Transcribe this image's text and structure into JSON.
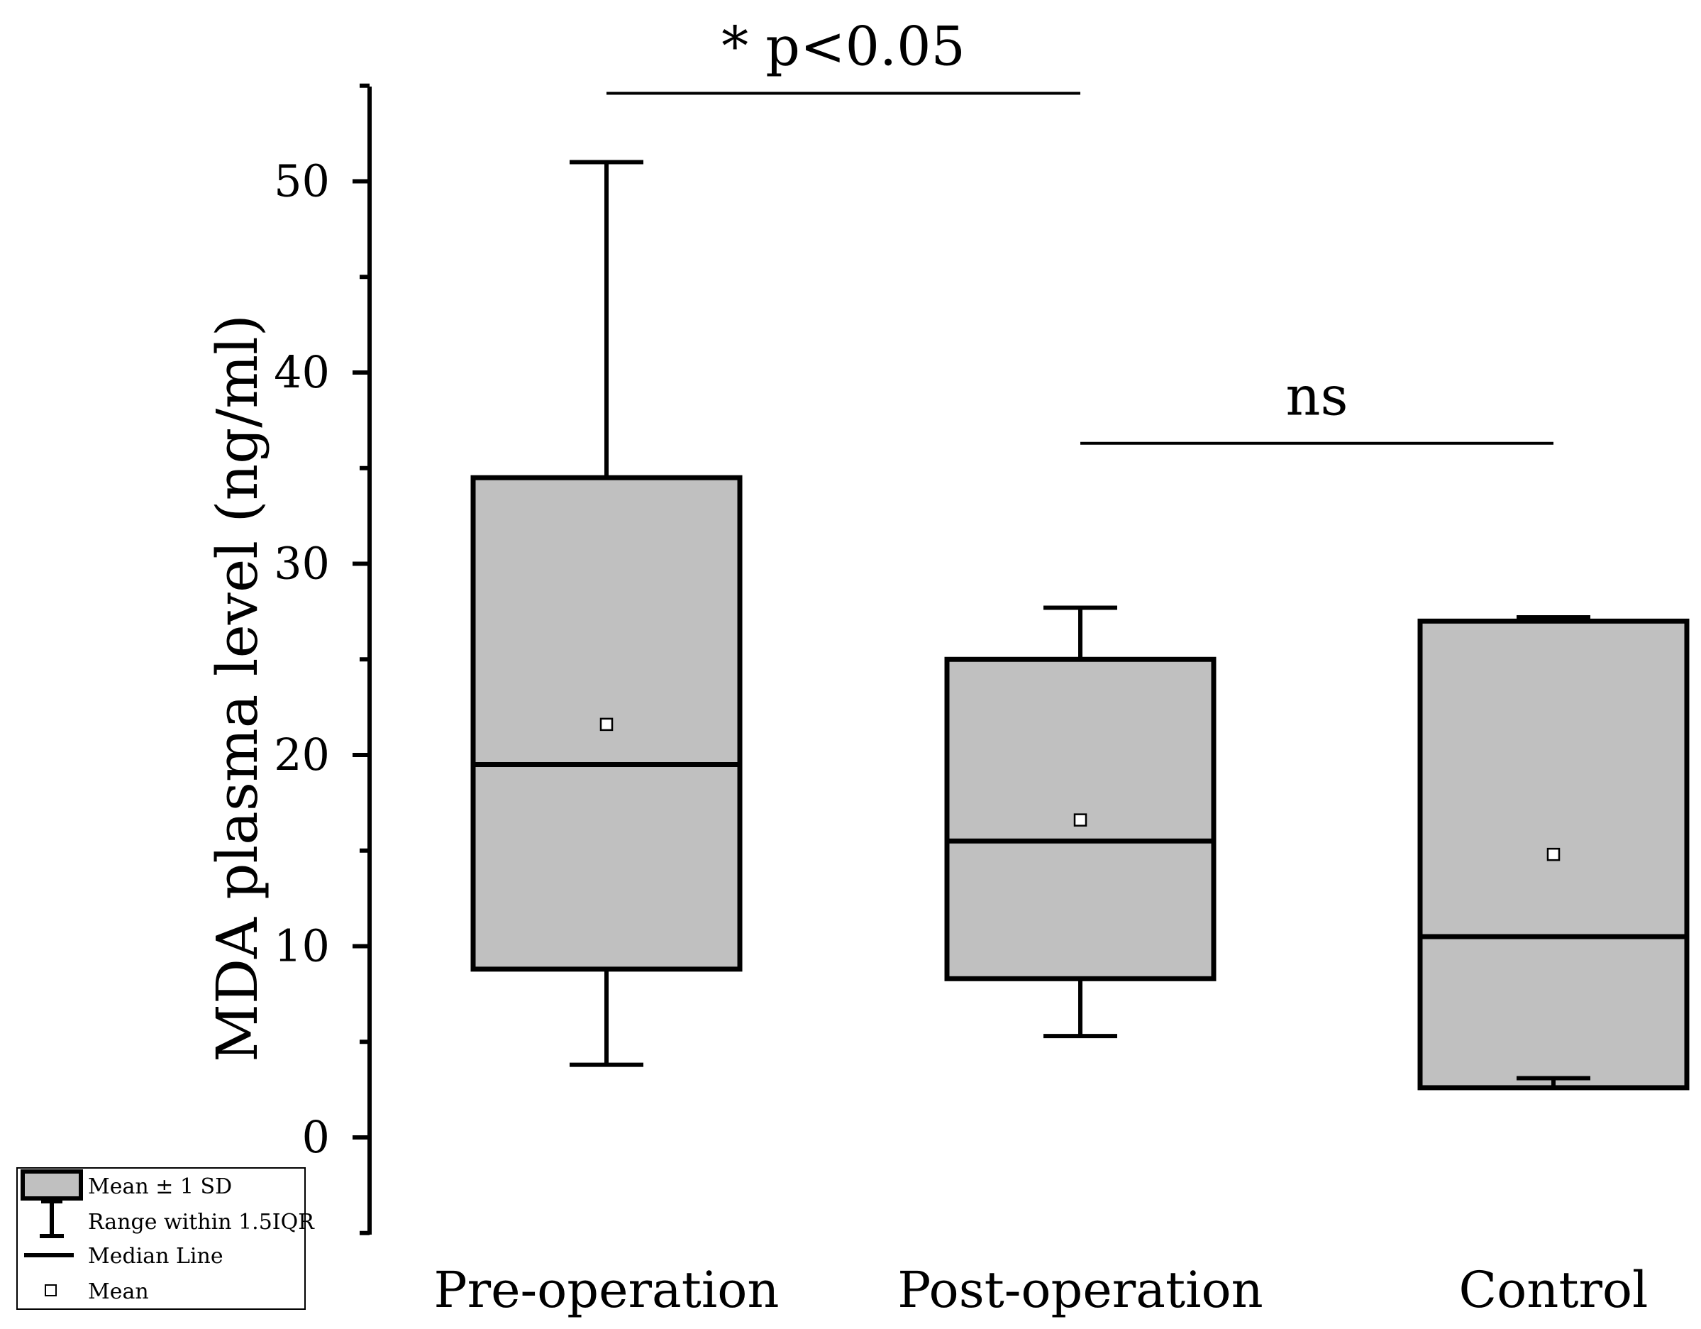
{
  "chart_data": {
    "type": "box",
    "categories": [
      "Pre-operation",
      "Post-operation",
      "Control"
    ],
    "ylabel": "MDA plasma level (ng/ml)",
    "xlabel": "",
    "ylim": [
      -5,
      55
    ],
    "yticks": [
      0,
      10,
      20,
      30,
      40,
      50
    ],
    "series": [
      {
        "name": "Pre-operation",
        "box_low": 8.8,
        "box_high": 34.5,
        "median": 19.5,
        "mean": 21.6,
        "whisker_low": 3.8,
        "whisker_high": 51.0
      },
      {
        "name": "Post-operation",
        "box_low": 8.3,
        "box_high": 25.0,
        "median": 15.5,
        "mean": 16.6,
        "whisker_low": 5.3,
        "whisker_high": 27.7
      },
      {
        "name": "Control",
        "box_low": 2.6,
        "box_high": 27.0,
        "median": 10.5,
        "mean": 14.8,
        "whisker_low": 3.1,
        "whisker_high": 27.2
      }
    ],
    "annotations": [
      {
        "text": "* p<0.05",
        "from": "Pre-operation",
        "to": "Post-operation",
        "y": 54.6
      },
      {
        "text": "ns",
        "from": "Post-operation",
        "to": "Control",
        "y": 36.3
      }
    ],
    "legend": {
      "position": "bottom-left",
      "items": [
        "Mean ± 1 SD",
        "Range within 1.5IQR",
        "Median Line",
        "Mean"
      ]
    },
    "colors": {
      "box_fill": "#c0c0c0",
      "stroke": "#000000"
    }
  }
}
